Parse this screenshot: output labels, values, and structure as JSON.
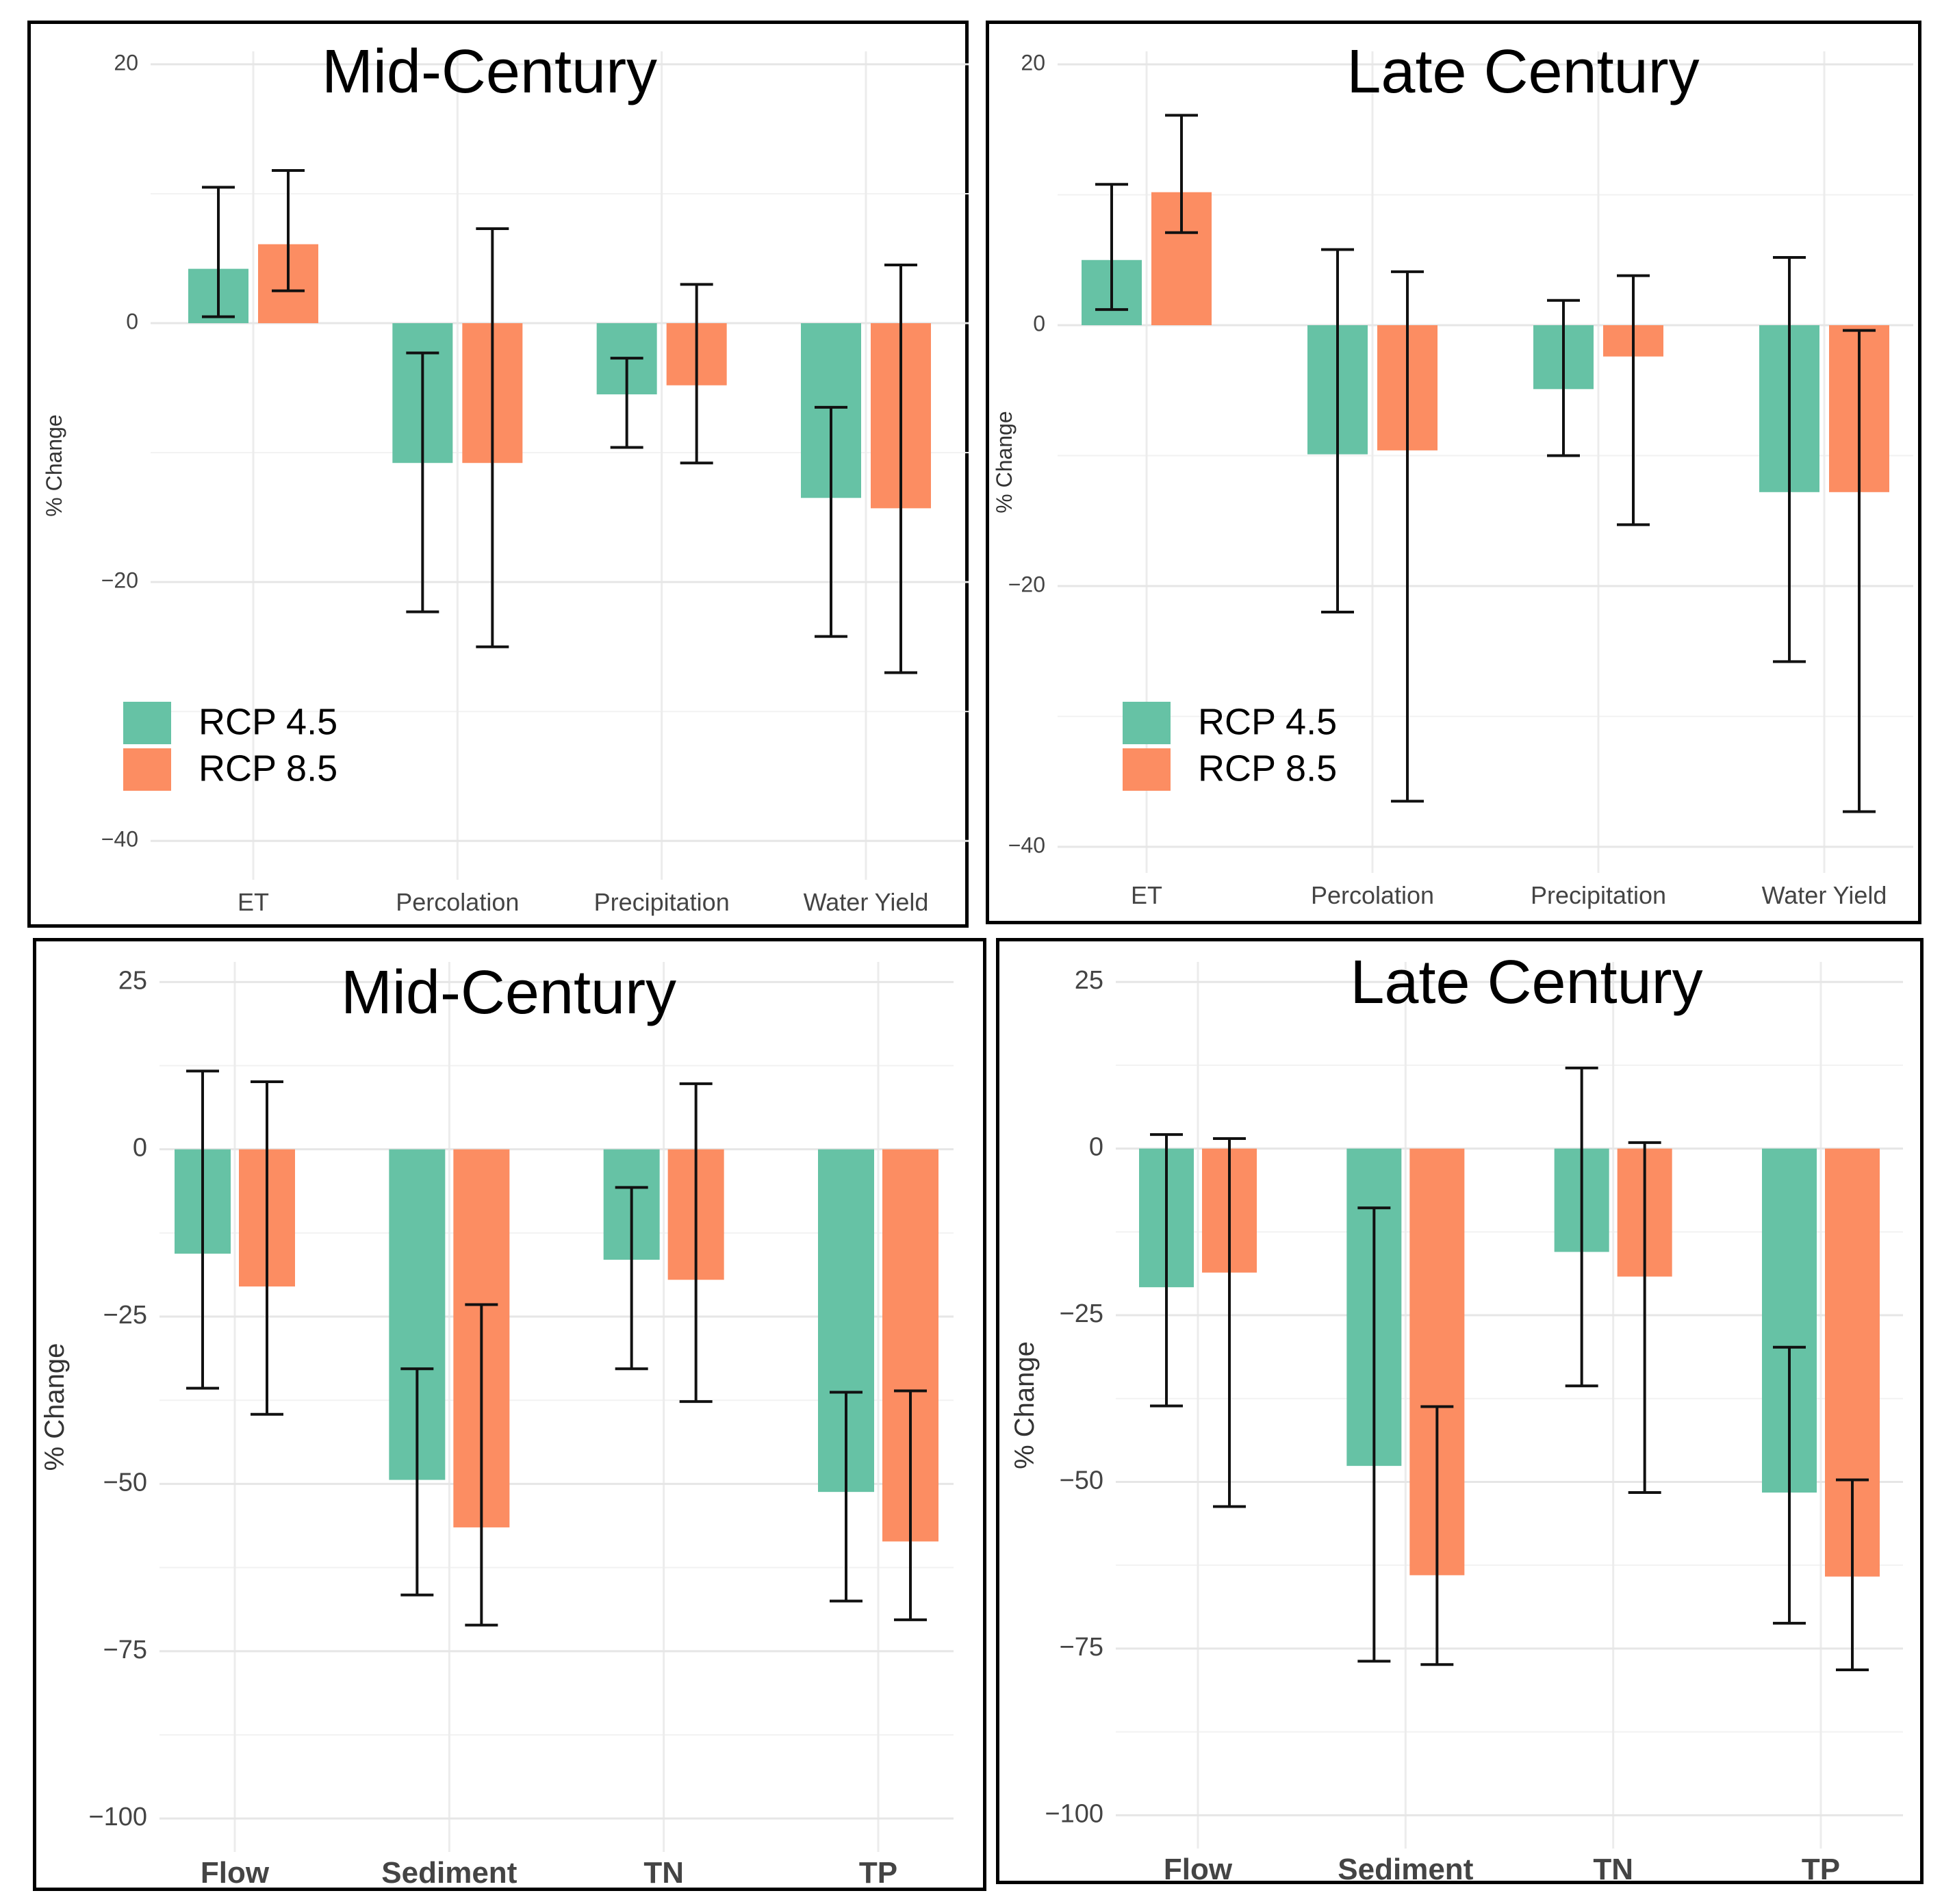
{
  "colors": {
    "rcp45": "#66c2a5",
    "rcp85": "#fc8d62"
  },
  "chart_data": [
    {
      "type": "bar",
      "title": "Mid-Century",
      "ylabel": "% Change",
      "categories": [
        "ET",
        "Percolation",
        "Precipitation",
        "Water Yield"
      ],
      "ylim": [
        -43,
        21
      ],
      "yticks": [
        20,
        0,
        -20,
        -40
      ],
      "yticks_label": [
        "20",
        "0",
        "−20",
        "−40"
      ],
      "legend": [
        "RCP 4.5",
        "RCP 8.5"
      ],
      "legend_position": "bottom-left",
      "series": [
        {
          "name": "RCP 4.5",
          "values": [
            4.2,
            -10.8,
            -5.5,
            -13.5
          ],
          "err_low": [
            0.5,
            -22.3,
            -9.6,
            -24.2
          ],
          "err_high": [
            10.5,
            -2.3,
            -2.7,
            -6.5
          ]
        },
        {
          "name": "RCP 8.5",
          "values": [
            6.1,
            -10.8,
            -4.8,
            -14.3
          ],
          "err_low": [
            2.5,
            -25.0,
            -10.8,
            -27.0
          ],
          "err_high": [
            11.8,
            7.3,
            3.0,
            4.5
          ]
        }
      ]
    },
    {
      "type": "bar",
      "title": "Late Century",
      "ylabel": "% Change",
      "categories": [
        "ET",
        "Percolation",
        "Precipitation",
        "Water Yield"
      ],
      "ylim": [
        -42,
        21
      ],
      "yticks": [
        20,
        0,
        -20,
        -40
      ],
      "yticks_label": [
        "20",
        "0",
        "−20",
        "−40"
      ],
      "legend": [
        "RCP 4.5",
        "RCP 8.5"
      ],
      "legend_position": "bottom-left",
      "series": [
        {
          "name": "RCP 4.5",
          "values": [
            5.0,
            -9.9,
            -4.9,
            -12.8
          ],
          "err_low": [
            1.2,
            -22.0,
            -10.0,
            -25.8
          ],
          "err_high": [
            10.8,
            5.8,
            1.9,
            5.2
          ]
        },
        {
          "name": "RCP 8.5",
          "values": [
            10.2,
            -9.6,
            -2.4,
            -12.8
          ],
          "err_low": [
            7.1,
            -36.5,
            -15.3,
            -37.3
          ],
          "err_high": [
            16.1,
            4.1,
            3.8,
            -0.4
          ]
        }
      ]
    },
    {
      "type": "bar",
      "title": "Mid-Century",
      "ylabel": "% Change",
      "categories": [
        "Flow",
        "Sediment",
        "TN",
        "TP"
      ],
      "ylim": [
        -105,
        28
      ],
      "yticks": [
        25,
        0,
        -25,
        -50,
        -75,
        -100
      ],
      "yticks_label": [
        "25",
        "0",
        "−25",
        "−50",
        "−75",
        "−100"
      ],
      "series": [
        {
          "name": "RCP 4.5",
          "values": [
            -15.6,
            -49.4,
            -16.5,
            -51.2
          ],
          "err_low": [
            -35.7,
            -66.6,
            -32.8,
            -67.5
          ],
          "err_high": [
            11.7,
            -32.8,
            -5.7,
            -36.3
          ]
        },
        {
          "name": "RCP 8.5",
          "values": [
            -20.5,
            -56.5,
            -19.5,
            -58.6
          ],
          "err_low": [
            -39.6,
            -71.1,
            -37.7,
            -70.3
          ],
          "err_high": [
            10.1,
            -23.2,
            9.8,
            -36.1
          ]
        }
      ]
    },
    {
      "type": "bar",
      "title": "Late Century",
      "ylabel": "% Change",
      "categories": [
        "Flow",
        "Sediment",
        "TN",
        "TP"
      ],
      "ylim": [
        -105,
        28
      ],
      "yticks": [
        25,
        0,
        -25,
        -50,
        -75,
        -100
      ],
      "yticks_label": [
        "25",
        "0",
        "−25",
        "−50",
        "−75",
        "−100"
      ],
      "series": [
        {
          "name": "RCP 4.5",
          "values": [
            -20.8,
            -47.6,
            -15.5,
            -51.6
          ],
          "err_low": [
            -38.6,
            -76.9,
            -35.6,
            -71.2
          ],
          "err_high": [
            2.1,
            -8.9,
            12.1,
            -29.8
          ]
        },
        {
          "name": "RCP 8.5",
          "values": [
            -18.6,
            -64.0,
            -19.2,
            -64.2
          ],
          "err_low": [
            -53.7,
            -77.4,
            -51.6,
            -78.2
          ],
          "err_high": [
            1.5,
            -38.7,
            0.9,
            -49.7
          ]
        }
      ]
    }
  ]
}
